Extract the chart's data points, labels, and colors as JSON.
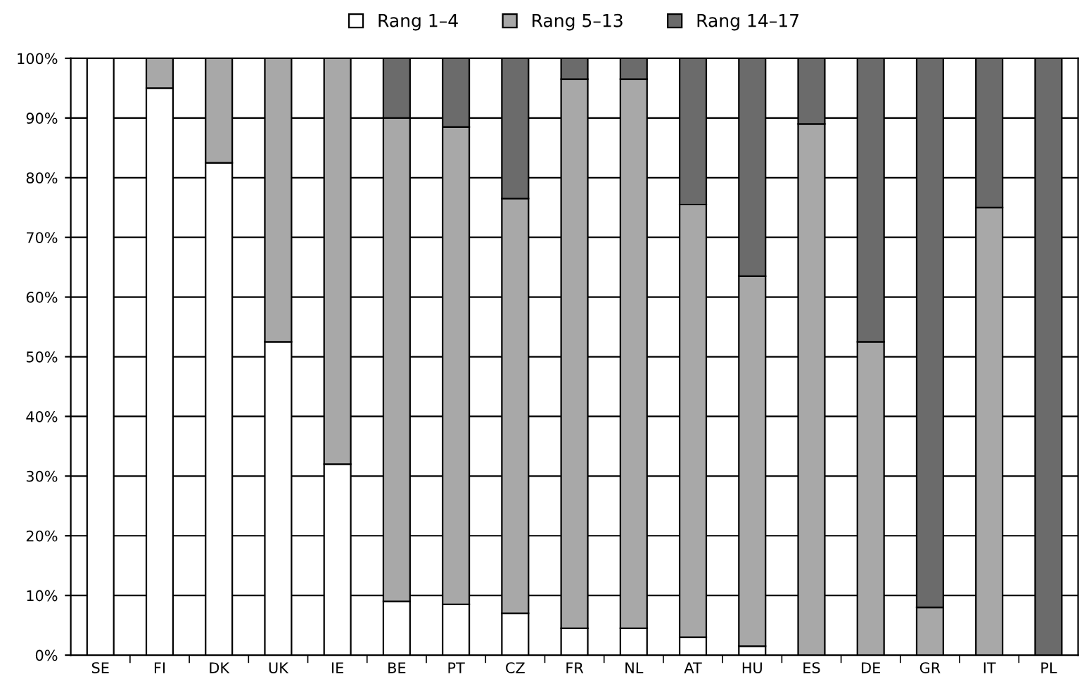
{
  "chart_data": {
    "type": "bar",
    "stacked": true,
    "categories": [
      "SE",
      "FI",
      "DK",
      "UK",
      "IE",
      "BE",
      "PT",
      "CZ",
      "FR",
      "NL",
      "AT",
      "HU",
      "ES",
      "DE",
      "GR",
      "IT",
      "PL"
    ],
    "series": [
      {
        "name": "Rang 1–4",
        "color": "#ffffff",
        "values": [
          100,
          95,
          82.5,
          52.5,
          32,
          9,
          8.5,
          7,
          4.5,
          4.5,
          3,
          1.5,
          0,
          0,
          0,
          0,
          0
        ]
      },
      {
        "name": "Rang 5–13",
        "color": "#a8a8a8",
        "values": [
          0,
          5,
          17.5,
          47.5,
          68,
          81,
          80,
          69.5,
          92,
          92,
          72.5,
          62,
          89,
          52.5,
          8,
          75,
          0
        ]
      },
      {
        "name": "Rang 14–17",
        "color": "#6b6b6b",
        "values": [
          0,
          0,
          0,
          0,
          0,
          10,
          11.5,
          23.5,
          3.5,
          3.5,
          24.5,
          36.5,
          11,
          47.5,
          92,
          25,
          100
        ]
      }
    ],
    "ylim": [
      0,
      100
    ],
    "yticks": [
      {
        "value": 0,
        "label": "0%"
      },
      {
        "value": 10,
        "label": "10%"
      },
      {
        "value": 20,
        "label": "20%"
      },
      {
        "value": 30,
        "label": "30%"
      },
      {
        "value": 40,
        "label": "40%"
      },
      {
        "value": 50,
        "label": "50%"
      },
      {
        "value": 60,
        "label": "60%"
      },
      {
        "value": 70,
        "label": "70%"
      },
      {
        "value": 80,
        "label": "80%"
      },
      {
        "value": 90,
        "label": "90%"
      },
      {
        "value": 100,
        "label": "100%"
      }
    ],
    "grid": "y",
    "legend": "top"
  }
}
